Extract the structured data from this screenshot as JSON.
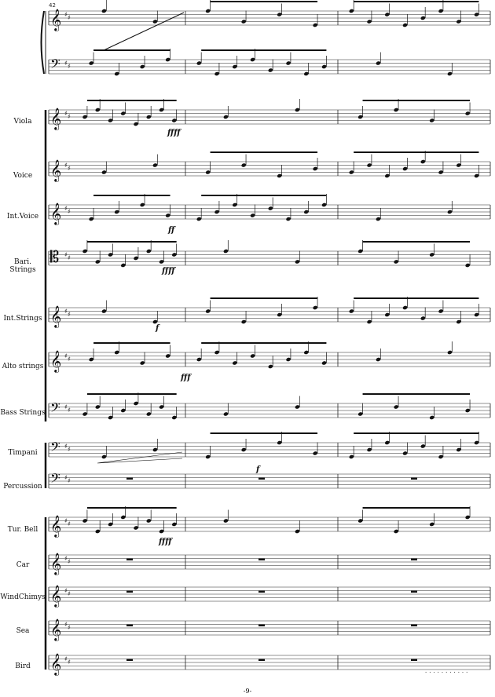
{
  "score": {
    "measure_start": "42",
    "page_number": "-9-",
    "footer_mark": "...........",
    "instruments": [
      {
        "id": "piano-treble",
        "label": ""
      },
      {
        "id": "piano-bass",
        "label": ""
      },
      {
        "id": "viola",
        "label": "Viola"
      },
      {
        "id": "voice",
        "label": "Voice"
      },
      {
        "id": "int-voice",
        "label": "Int.Voice"
      },
      {
        "id": "bari-strings",
        "label": "Bari. Strings"
      },
      {
        "id": "int-strings",
        "label": "Int.Strings"
      },
      {
        "id": "alto-strings",
        "label": "Alto strings"
      },
      {
        "id": "bass-strings",
        "label": "Bass Strings"
      },
      {
        "id": "timpani",
        "label": "Timpani"
      },
      {
        "id": "percussion",
        "label": "Percussion"
      },
      {
        "id": "tur-bell",
        "label": "Tur. Bell"
      },
      {
        "id": "car",
        "label": "Car"
      },
      {
        "id": "windchimys",
        "label": "WindChimys"
      },
      {
        "id": "sea",
        "label": "Sea"
      },
      {
        "id": "bird",
        "label": "Bird"
      }
    ],
    "dynamics": {
      "viola": "ffff",
      "int_voice": "ff",
      "bari_strings": "ffff",
      "int_strings": "f",
      "alto_strings": "fff",
      "timpani": "f",
      "tur_bell": "ffff"
    }
  }
}
